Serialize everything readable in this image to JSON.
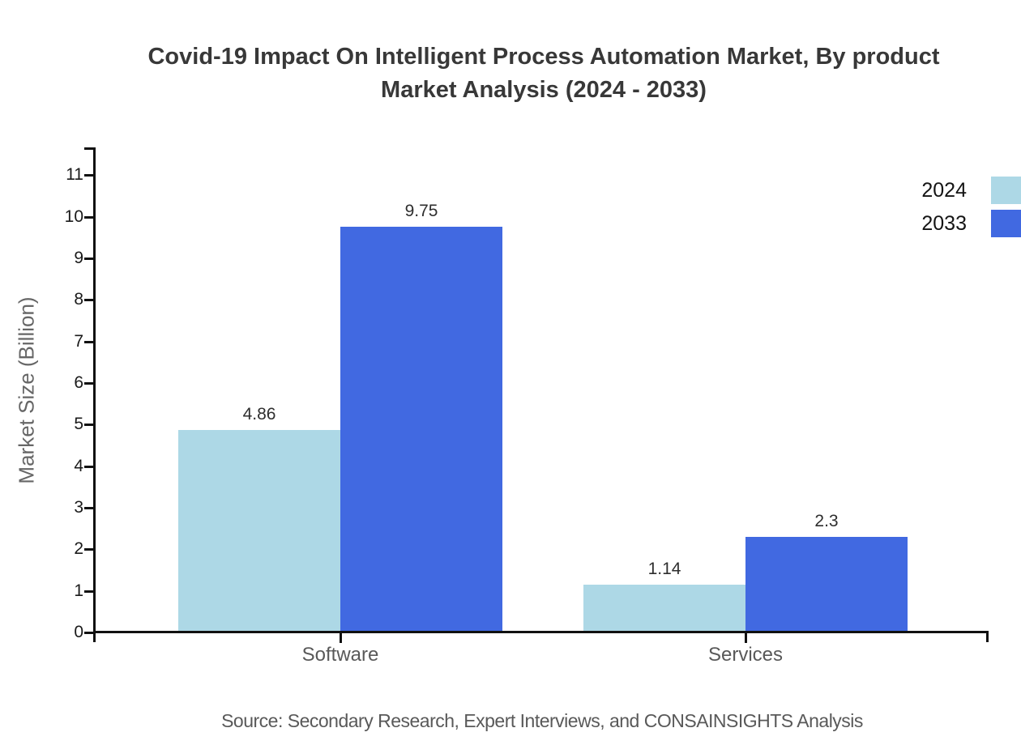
{
  "title": {
    "line1": "Covid-19 Impact On Intelligent Process Automation Market, By product",
    "line2": "Market Analysis (2024 - 2033)"
  },
  "chart_data": {
    "type": "bar",
    "title": "Covid-19 Impact On Intelligent Process Automation Market, By product Market Analysis (2024 - 2033)",
    "categories": [
      "Software",
      "Services"
    ],
    "series": [
      {
        "name": "2024",
        "color": "#ADD8E6",
        "values": [
          4.86,
          1.14
        ]
      },
      {
        "name": "2033",
        "color": "#4169E1",
        "values": [
          9.75,
          2.3
        ]
      }
    ],
    "xlabel": "",
    "ylabel": "Market Size (Billion)",
    "ylim": [
      0,
      11.7
    ],
    "yticks": [
      0,
      1,
      2,
      3,
      4,
      5,
      6,
      7,
      8,
      9,
      10,
      11
    ],
    "grid": false,
    "value_labels": true,
    "legend_position": "right-edge"
  },
  "source": "Source: Secondary Research, Expert Interviews, and CONSAINSIGHTS Analysis",
  "colors": {
    "background": "#ffffff",
    "title": "#383838",
    "axis": "#111111",
    "tick_label": "#1a1a1a",
    "category_label": "#595959",
    "value_label": "#2e2e2e",
    "ylabel": "#666666",
    "legend_label": "#141414",
    "source": "#595959",
    "series_2024": "#ADD8E6",
    "series_2033": "#4169E1"
  }
}
